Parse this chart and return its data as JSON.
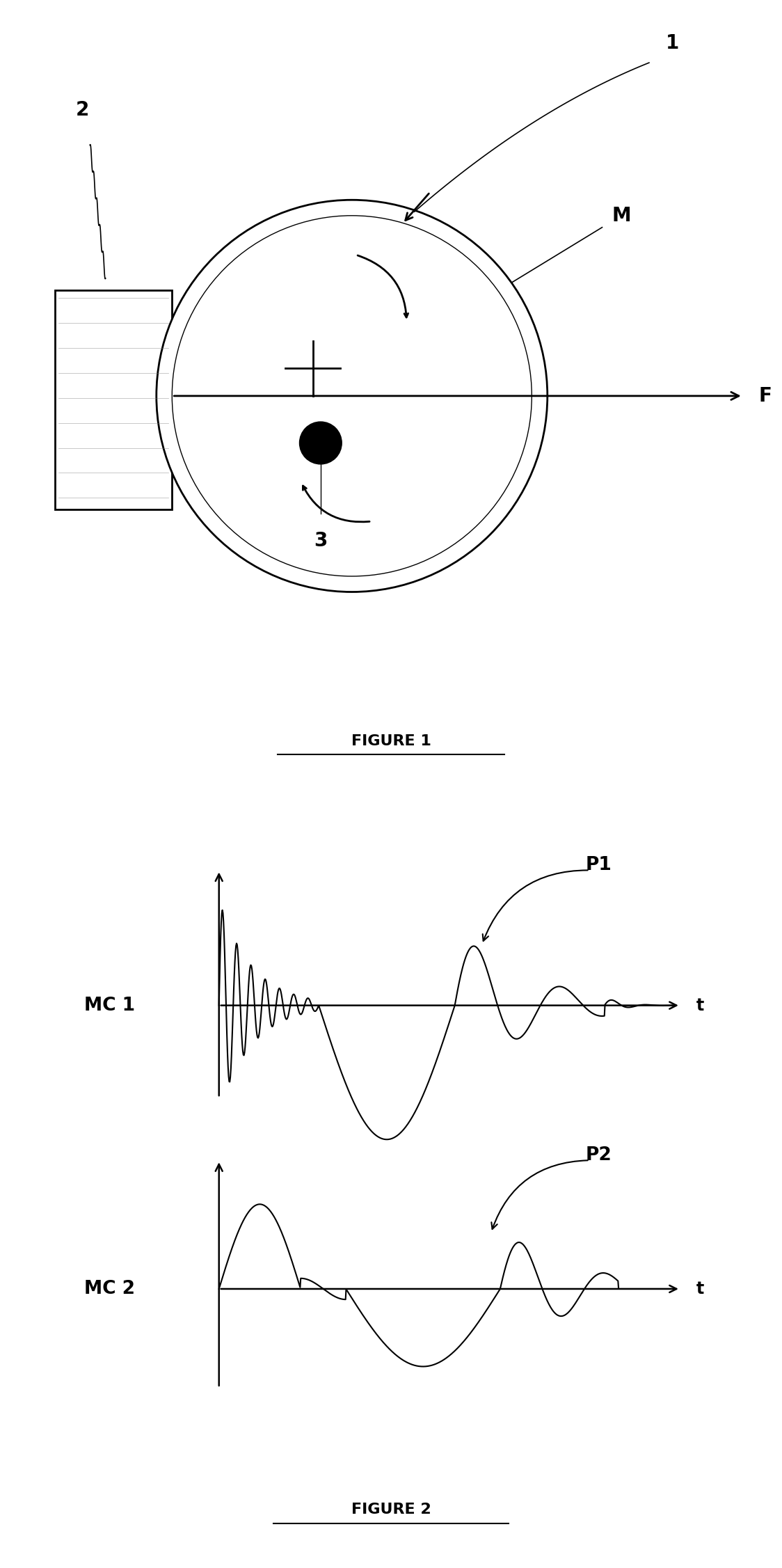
{
  "fig_width": 11.24,
  "fig_height": 22.53,
  "bg_color": "#ffffff",
  "line_color": "#000000",
  "fig1_label": "FIGURE 1",
  "fig2_label": "FIGURE 2",
  "label_1": "1",
  "label_2": "2",
  "label_3": "3",
  "label_M": "M",
  "label_F": "F",
  "label_t": "t",
  "label_MC1": "MC 1",
  "label_MC2": "MC 2",
  "label_P1": "P1",
  "label_P2": "P2"
}
